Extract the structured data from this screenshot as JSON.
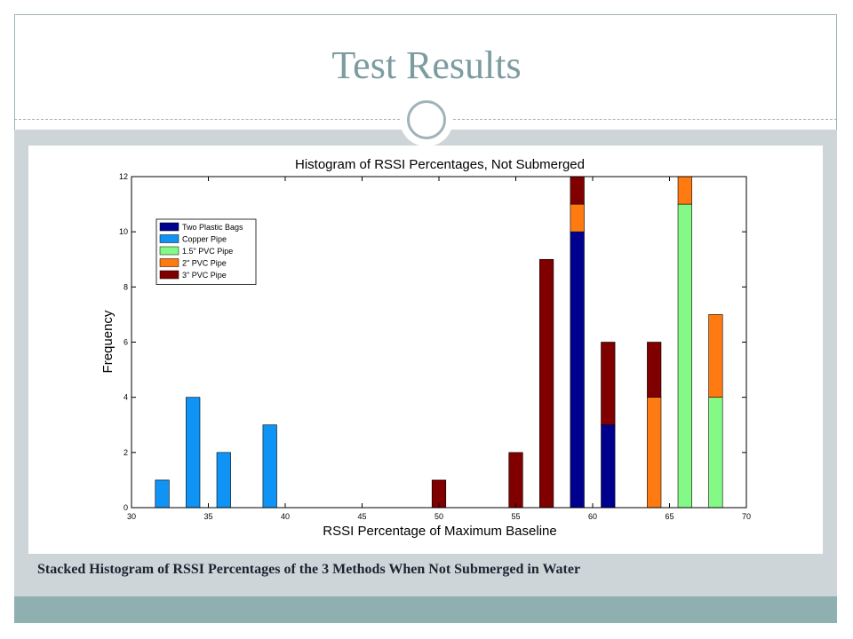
{
  "slide": {
    "title": "Test Results",
    "caption": "Stacked Histogram of RSSI Percentages of the 3 Methods When Not Submerged in Water"
  },
  "chart_data": {
    "type": "bar",
    "stacked": true,
    "title": "Histogram of RSSI Percentages, Not Submerged",
    "xlabel": "RSSI Percentage of Maximum Baseline",
    "ylabel": "Frequency",
    "xlim": [
      30,
      70
    ],
    "ylim": [
      0,
      12
    ],
    "xticks": [
      30,
      35,
      40,
      45,
      50,
      55,
      60,
      65,
      70
    ],
    "yticks": [
      0,
      2,
      4,
      6,
      8,
      10,
      12
    ],
    "grid": false,
    "legend_position": "top-left",
    "bin_centers": [
      32,
      34,
      36,
      39,
      50,
      55,
      57,
      59,
      61,
      64,
      66,
      68
    ],
    "series": [
      {
        "name": "Two Plastic Bags",
        "color": "#00008f",
        "values": [
          0,
          0,
          0,
          0,
          0,
          0,
          0,
          10,
          3,
          0,
          0,
          0
        ]
      },
      {
        "name": "Copper Pipe",
        "color": "#0f94f5",
        "values": [
          1,
          4,
          2,
          3,
          0,
          0,
          0,
          0,
          0,
          0,
          0,
          0
        ]
      },
      {
        "name": "1.5\" PVC Pipe",
        "color": "#85f985",
        "values": [
          0,
          0,
          0,
          0,
          0,
          0,
          0,
          0,
          0,
          0,
          11,
          4
        ]
      },
      {
        "name": "2\" PVC Pipe",
        "color": "#ff7a11",
        "values": [
          0,
          0,
          0,
          0,
          0,
          0,
          0,
          1,
          0,
          4,
          1,
          3
        ]
      },
      {
        "name": "3\" PVC Pipe",
        "color": "#800000",
        "values": [
          0,
          0,
          0,
          0,
          1,
          2,
          9,
          1,
          3,
          2,
          0,
          0
        ]
      }
    ]
  }
}
